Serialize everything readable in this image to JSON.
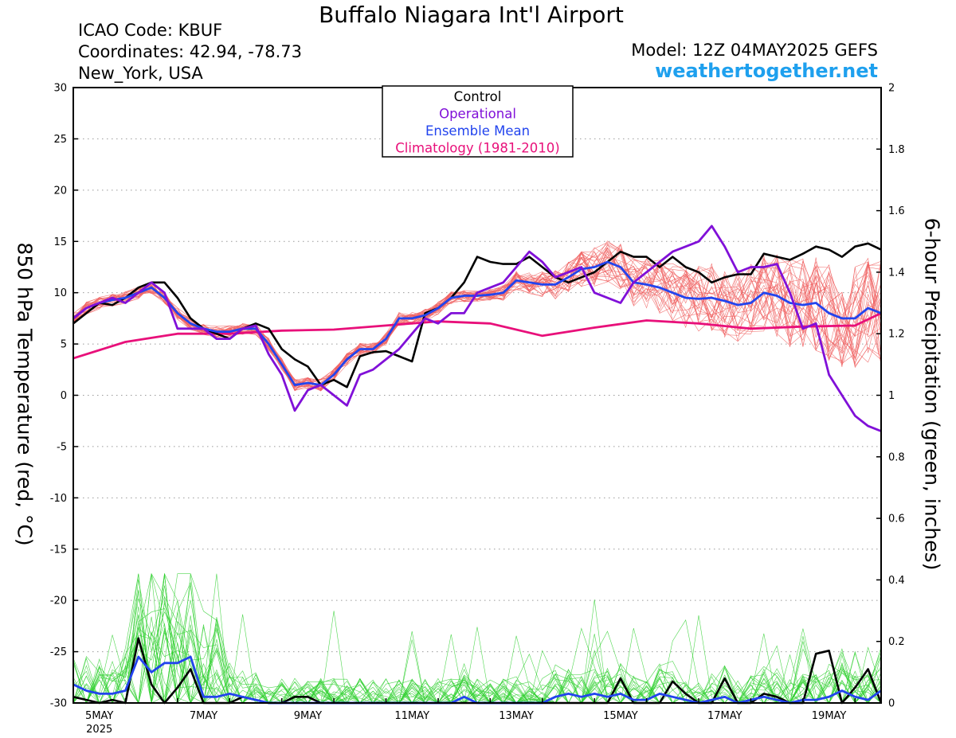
{
  "header": {
    "title": "Buffalo Niagara Int'l Airport",
    "icao": "ICAO Code: KBUF",
    "coordinates": "Coordinates: 42.94, -78.73",
    "location": "New_York, USA",
    "model": "Model: 12Z 04MAY2025 GEFS",
    "site": "weathertogether.net"
  },
  "colors": {
    "control": "#000000",
    "operational": "#8010d8",
    "ensemble_mean": "#2244ee",
    "climatology": "#e8107a",
    "members_temp": "#f06060",
    "members_precip": "#30d030"
  },
  "chart_data": {
    "type": "line",
    "ylabel": "850 hPa Temperature (red, °C)",
    "y2label": "6-hour Precipitation (green, inches)",
    "ylim": [
      -30,
      30
    ],
    "y2lim": [
      0,
      2
    ],
    "xlim": [
      0,
      15.5
    ],
    "grid": "horizontal dotted",
    "legend_position": "top-center",
    "x_ticks": [
      {
        "x": 0.5,
        "label": "5MAY",
        "sub": "2025"
      },
      {
        "x": 2.5,
        "label": "7MAY"
      },
      {
        "x": 4.5,
        "label": "9MAY"
      },
      {
        "x": 6.5,
        "label": "11MAY"
      },
      {
        "x": 8.5,
        "label": "13MAY"
      },
      {
        "x": 10.5,
        "label": "15MAY"
      },
      {
        "x": 12.5,
        "label": "17MAY"
      },
      {
        "x": 14.5,
        "label": "19MAY"
      }
    ],
    "y_ticks": [
      -30,
      -25,
      -20,
      -15,
      -10,
      -5,
      0,
      5,
      10,
      15,
      20,
      25,
      30
    ],
    "y2_ticks": [
      0,
      0.2,
      0.4,
      0.6,
      0.8,
      1,
      1.2,
      1.4,
      1.6,
      1.8,
      2
    ],
    "legend": [
      "Control",
      "Operational",
      "Ensemble Mean",
      "Climatology (1981-2010)"
    ],
    "series": [
      {
        "name": "Control",
        "axis": "temp",
        "x": [
          0,
          0.25,
          0.5,
          0.75,
          1,
          1.25,
          1.5,
          1.75,
          2,
          2.25,
          2.5,
          2.75,
          3,
          3.25,
          3.5,
          3.75,
          4,
          4.25,
          4.5,
          4.75,
          5,
          5.25,
          5.5,
          5.75,
          6,
          6.25,
          6.5,
          6.75,
          7,
          7.25,
          7.5,
          7.75,
          8,
          8.25,
          8.5,
          8.75,
          9,
          9.25,
          9.5,
          9.75,
          10,
          10.25,
          10.5,
          10.75,
          11,
          11.25,
          11.5,
          11.75,
          12,
          12.25,
          12.5,
          12.75,
          13,
          13.25,
          13.5,
          13.75,
          14,
          14.25,
          14.5,
          14.75,
          15,
          15.25,
          15.5
        ],
        "y": [
          7,
          8,
          9,
          8.8,
          9.5,
          10.5,
          11,
          11,
          9.5,
          7.5,
          6.5,
          6,
          5.5,
          6.5,
          7,
          6.5,
          4.5,
          3.5,
          2.8,
          1,
          1.5,
          0.8,
          3.8,
          4.2,
          4.3,
          3.8,
          3.3,
          8,
          8.5,
          9.5,
          11,
          13.5,
          13,
          12.8,
          12.8,
          13.5,
          12.5,
          11.5,
          11,
          11.5,
          12,
          13,
          14,
          13.5,
          13.5,
          12.5,
          13.5,
          12.5,
          12,
          11,
          11.5,
          11.8,
          11.8,
          13.8,
          13.5,
          13.2,
          13.8,
          14.5,
          14.2,
          13.5,
          14.5,
          14.8,
          14.2
        ]
      },
      {
        "name": "Operational",
        "axis": "temp",
        "x": [
          0,
          0.25,
          0.5,
          0.75,
          1,
          1.25,
          1.5,
          1.75,
          2,
          2.25,
          2.5,
          2.75,
          3,
          3.25,
          3.5,
          3.75,
          4,
          4.25,
          4.5,
          4.75,
          5,
          5.25,
          5.5,
          5.75,
          6,
          6.25,
          6.5,
          6.75,
          7,
          7.25,
          7.5,
          7.75,
          8,
          8.25,
          8.5,
          8.75,
          9,
          9.25,
          9.5,
          9.75,
          10,
          10.25,
          10.5,
          10.75,
          11,
          11.25,
          11.5,
          11.75,
          12,
          12.25,
          12.5,
          12.75,
          13,
          13.25,
          13.5,
          13.75,
          14,
          14.25,
          14.5,
          14.75,
          15,
          15.25,
          15.5
        ],
        "y": [
          7.5,
          8.5,
          9,
          9.5,
          9,
          10,
          11,
          10,
          6.5,
          6.5,
          6.5,
          5.5,
          5.5,
          6.5,
          6.8,
          4,
          2,
          -1.5,
          0.5,
          1,
          0,
          -1,
          2,
          2.5,
          3.5,
          4.5,
          6,
          7.5,
          7,
          8,
          8,
          10,
          10.5,
          11,
          12.5,
          14,
          13,
          11.5,
          12,
          12.5,
          10,
          9.5,
          9,
          11,
          12,
          13,
          14,
          14.5,
          15,
          16.5,
          14.5,
          12,
          12.5,
          12.5,
          12.8,
          10,
          6.5,
          7,
          2,
          0,
          -2,
          -3,
          -3.5
        ]
      },
      {
        "name": "Ensemble Mean",
        "axis": "temp",
        "x": [
          0,
          0.25,
          0.5,
          0.75,
          1,
          1.25,
          1.5,
          1.75,
          2,
          2.25,
          2.5,
          2.75,
          3,
          3.25,
          3.5,
          3.75,
          4,
          4.25,
          4.5,
          4.75,
          5,
          5.25,
          5.5,
          5.75,
          6,
          6.25,
          6.5,
          6.75,
          7,
          7.25,
          7.5,
          7.75,
          8,
          8.25,
          8.5,
          8.75,
          9,
          9.25,
          9.5,
          9.75,
          10,
          10.25,
          10.5,
          10.75,
          11,
          11.25,
          11.5,
          11.75,
          12,
          12.25,
          12.5,
          12.75,
          13,
          13.25,
          13.5,
          13.75,
          14,
          14.25,
          14.5,
          14.75,
          15,
          15.25,
          15.5
        ],
        "y": [
          7.5,
          8.5,
          9,
          9.3,
          9.5,
          10,
          10.5,
          9.5,
          8,
          7,
          6.5,
          6.2,
          6.2,
          6.5,
          6.5,
          5,
          3,
          1,
          1.2,
          1,
          2,
          3.5,
          4.5,
          4.5,
          5.5,
          7.5,
          7.5,
          7.8,
          8.5,
          9.5,
          9.7,
          9.7,
          9.8,
          10,
          11.2,
          11,
          10.8,
          10.8,
          11.5,
          12.3,
          12.5,
          13,
          12.5,
          11,
          10.8,
          10.5,
          10,
          9.5,
          9.4,
          9.5,
          9.2,
          8.8,
          9,
          10,
          9.7,
          9,
          8.8,
          9,
          8,
          7.5,
          7.5,
          8.5,
          8
        ]
      },
      {
        "name": "Climatology (1981-2010)",
        "axis": "temp",
        "x": [
          0,
          1,
          2,
          3,
          4,
          5,
          6,
          7,
          8,
          9,
          10,
          11,
          12,
          13,
          14,
          15,
          15.5
        ],
        "y": [
          3.6,
          5.2,
          6,
          6,
          6.3,
          6.4,
          6.8,
          7.2,
          7,
          5.8,
          6.6,
          7.3,
          7,
          6.5,
          6.7,
          6.8,
          8
        ]
      },
      {
        "name": "Control",
        "axis": "precip",
        "x": [
          0,
          0.25,
          0.5,
          0.75,
          1,
          1.25,
          1.5,
          1.75,
          2,
          2.25,
          2.5,
          2.75,
          3,
          3.25,
          3.5,
          3.75,
          4,
          4.25,
          4.5,
          4.75,
          5,
          5.25,
          5.5,
          5.75,
          6,
          6.25,
          6.5,
          6.75,
          7,
          7.25,
          7.5,
          7.75,
          8,
          8.25,
          8.5,
          8.75,
          9,
          9.25,
          9.5,
          9.75,
          10,
          10.25,
          10.5,
          10.75,
          11,
          11.25,
          11.5,
          11.75,
          12,
          12.25,
          12.5,
          12.75,
          13,
          13.25,
          13.5,
          13.75,
          14,
          14.25,
          14.5,
          14.75,
          15,
          15.25,
          15.5
        ],
        "y": [
          0.02,
          0.01,
          0,
          0.01,
          0,
          0.21,
          0.06,
          0,
          0.05,
          0.11,
          0,
          0,
          0,
          0.02,
          0.01,
          0,
          0,
          0.02,
          0.02,
          0,
          0,
          0,
          0,
          0,
          0,
          0,
          0,
          0,
          0,
          0,
          0,
          0,
          0,
          0,
          0,
          0,
          0,
          0,
          0,
          0,
          0,
          0,
          0.08,
          0,
          0,
          0,
          0.07,
          0.03,
          0,
          0,
          0.08,
          0,
          0,
          0.03,
          0.02,
          0,
          0,
          0.16,
          0.17,
          0,
          0.05,
          0.11,
          0
        ]
      },
      {
        "name": "Ensemble Mean",
        "axis": "precip",
        "x": [
          0,
          0.25,
          0.5,
          0.75,
          1,
          1.25,
          1.5,
          1.75,
          2,
          2.25,
          2.5,
          2.75,
          3,
          3.25,
          3.5,
          3.75,
          4,
          4.25,
          4.5,
          4.75,
          5,
          5.25,
          5.5,
          5.75,
          6,
          6.25,
          6.5,
          6.75,
          7,
          7.25,
          7.5,
          7.75,
          8,
          8.25,
          8.5,
          8.75,
          9,
          9.25,
          9.5,
          9.75,
          10,
          10.25,
          10.5,
          10.75,
          11,
          11.25,
          11.5,
          11.75,
          12,
          12.25,
          12.5,
          12.75,
          13,
          13.25,
          13.5,
          13.75,
          14,
          14.25,
          14.5,
          14.75,
          15,
          15.25,
          15.5
        ],
        "y": [
          0.06,
          0.04,
          0.03,
          0.03,
          0.04,
          0.15,
          0.1,
          0.13,
          0.13,
          0.15,
          0.02,
          0.02,
          0.03,
          0.02,
          0.01,
          0,
          0,
          0,
          0,
          0,
          0,
          0,
          0,
          0,
          0,
          0,
          0,
          0,
          0,
          0,
          0.02,
          0,
          0,
          0,
          0,
          0,
          0,
          0.02,
          0.03,
          0.02,
          0.03,
          0.02,
          0.03,
          0.01,
          0.01,
          0.03,
          0.02,
          0.01,
          0,
          0.01,
          0.02,
          0,
          0.01,
          0.02,
          0.01,
          0,
          0.01,
          0.01,
          0.02,
          0.04,
          0.02,
          0.01,
          0.04
        ]
      }
    ]
  }
}
